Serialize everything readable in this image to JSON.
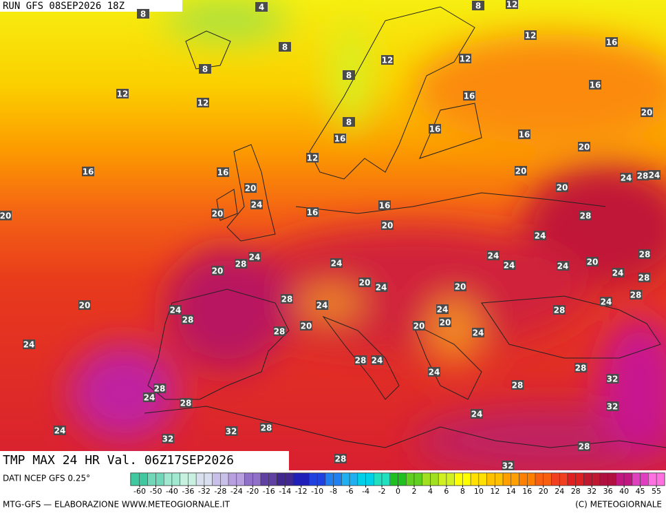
{
  "header": {
    "run": "RUN GFS 08SEP2026 18Z"
  },
  "map_title": "TMP MAX 24 HR Val. 06Z17SEP2026",
  "footer": {
    "source": "DATI NCEP GFS 0.25°",
    "credit": "MTG-GFS — ELABORAZIONE WWW.METEOGIORNALE.IT",
    "copyright": "(C) METEOGIORNALE"
  },
  "colorbar": {
    "ticks": [
      -60,
      -50,
      -40,
      -36,
      -32,
      -28,
      -24,
      -20,
      -16,
      -14,
      -12,
      -10,
      -8,
      -6,
      -4,
      -2,
      0,
      2,
      4,
      6,
      8,
      10,
      12,
      14,
      16,
      20,
      24,
      28,
      32,
      36,
      40,
      45,
      55
    ]
  },
  "contour_labels": [
    4,
    8,
    8,
    12,
    12,
    16,
    8,
    8,
    12,
    12,
    8,
    12,
    12,
    16,
    16,
    8,
    16,
    16,
    20,
    16,
    20,
    12,
    16,
    16,
    20,
    24,
    28,
    24,
    20,
    20,
    24,
    16,
    20,
    20,
    16,
    28,
    20,
    24,
    24,
    28,
    24,
    24,
    24,
    24,
    20,
    28,
    20,
    24,
    28,
    20,
    24,
    20,
    28,
    24,
    24,
    28,
    20,
    24,
    24,
    28,
    28,
    20,
    20,
    20,
    28,
    24,
    24,
    28,
    24,
    28,
    24,
    32,
    28,
    24,
    28,
    28,
    32,
    24,
    24,
    28,
    32,
    32,
    28,
    28,
    32
  ]
}
